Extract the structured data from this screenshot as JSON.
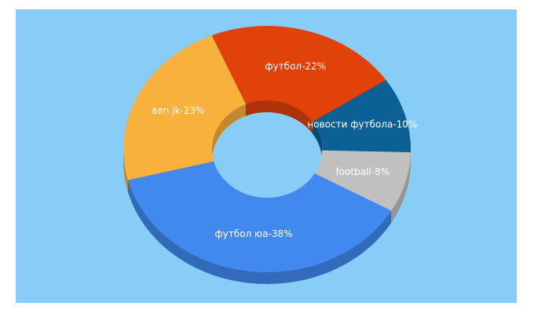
{
  "chart_data": {
    "type": "donut3d",
    "values": [
      38,
      23,
      22,
      10,
      8
    ],
    "value_labels": [
      "футбол юа-38%",
      "aen jk-23%",
      "футбол-22%",
      "новости футбола-10%",
      "football-8%"
    ],
    "colors": [
      "#4189ee",
      "#f9b13e",
      "#e0420a",
      "#0b6193",
      "#c0c0c0"
    ]
  }
}
